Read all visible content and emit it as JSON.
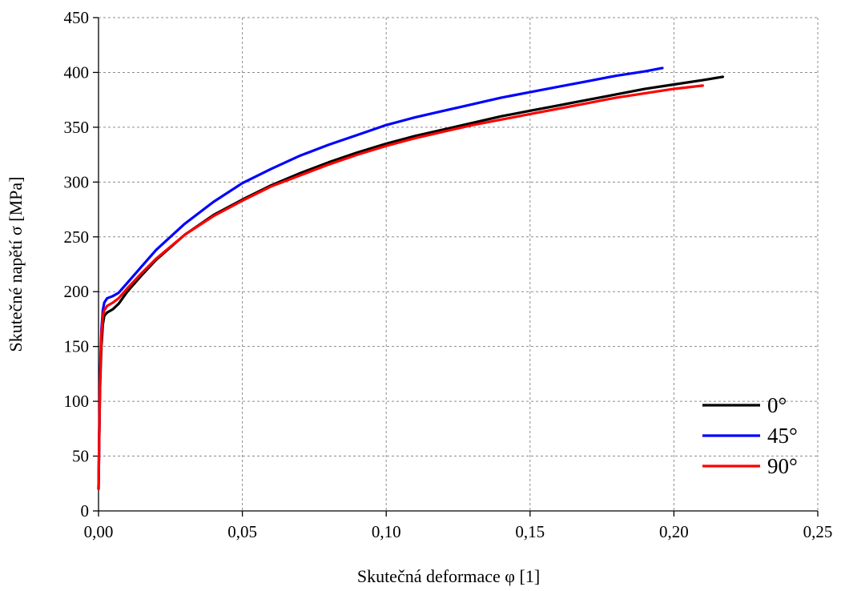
{
  "chart_data": {
    "type": "line",
    "title": "",
    "xlabel": "Skutečná deformace φ [1]",
    "ylabel": "Skutečné napětí σ [MPa]",
    "xlim": [
      0,
      0.25
    ],
    "ylim": [
      0,
      450
    ],
    "x_ticks": [
      0,
      0.05,
      0.1,
      0.15,
      0.2,
      0.25
    ],
    "x_tick_labels": [
      "0,00",
      "0,05",
      "0,10",
      "0,15",
      "0,20",
      "0,25"
    ],
    "y_ticks": [
      0,
      50,
      100,
      150,
      200,
      250,
      300,
      350,
      400,
      450
    ],
    "y_tick_labels": [
      "0",
      "50",
      "100",
      "150",
      "200",
      "250",
      "300",
      "350",
      "400",
      "450"
    ],
    "grid": true,
    "legend_position": "bottom-right",
    "series": [
      {
        "name": "0°",
        "color": "#000000",
        "x": [
          0.0,
          0.0005,
          0.001,
          0.0015,
          0.002,
          0.003,
          0.005,
          0.007,
          0.01,
          0.015,
          0.02,
          0.03,
          0.04,
          0.05,
          0.06,
          0.07,
          0.08,
          0.09,
          0.1,
          0.11,
          0.12,
          0.13,
          0.14,
          0.15,
          0.16,
          0.17,
          0.18,
          0.19,
          0.2,
          0.21,
          0.217
        ],
        "y": [
          20,
          110,
          150,
          170,
          178,
          181,
          184,
          189,
          200,
          215,
          229,
          252,
          270,
          284,
          297,
          308,
          318,
          327,
          335,
          342,
          348,
          354,
          360,
          365,
          370,
          375,
          380,
          385,
          389,
          393,
          396
        ]
      },
      {
        "name": "45°",
        "color": "#0000ff",
        "x": [
          0.0,
          0.0005,
          0.001,
          0.0015,
          0.002,
          0.003,
          0.005,
          0.007,
          0.01,
          0.015,
          0.02,
          0.03,
          0.04,
          0.05,
          0.06,
          0.07,
          0.08,
          0.09,
          0.1,
          0.11,
          0.12,
          0.13,
          0.14,
          0.15,
          0.16,
          0.17,
          0.18,
          0.19,
          0.196
        ],
        "y": [
          20,
          120,
          165,
          183,
          190,
          194,
          196,
          199,
          208,
          223,
          238,
          262,
          282,
          299,
          312,
          324,
          334,
          343,
          352,
          359,
          365,
          371,
          377,
          382,
          387,
          392,
          397,
          401,
          404
        ]
      },
      {
        "name": "90°",
        "color": "#ff0000",
        "x": [
          0.0,
          0.0005,
          0.001,
          0.0015,
          0.002,
          0.003,
          0.005,
          0.007,
          0.01,
          0.015,
          0.02,
          0.03,
          0.04,
          0.05,
          0.06,
          0.07,
          0.08,
          0.09,
          0.1,
          0.11,
          0.12,
          0.13,
          0.14,
          0.15,
          0.16,
          0.17,
          0.18,
          0.19,
          0.2,
          0.21
        ],
        "y": [
          20,
          115,
          160,
          178,
          183,
          187,
          190,
          194,
          203,
          217,
          230,
          252,
          269,
          283,
          296,
          306,
          316,
          325,
          333,
          340,
          346,
          352,
          357,
          362,
          367,
          372,
          377,
          381,
          385,
          388
        ]
      }
    ]
  }
}
